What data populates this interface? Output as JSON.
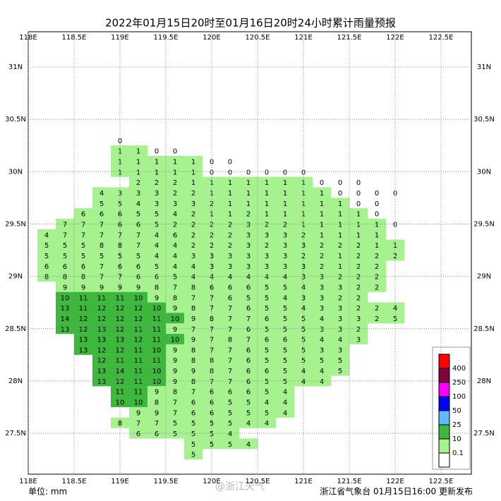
{
  "title": "2022年01月15日20时至01月16日20时24小时累计雨量预报",
  "lon_ticks": [
    {
      "value": 118,
      "label": "118E"
    },
    {
      "value": 118.5,
      "label": "118.5E"
    },
    {
      "value": 119,
      "label": "119E"
    },
    {
      "value": 119.5,
      "label": "119.5E"
    },
    {
      "value": 120,
      "label": "120E"
    },
    {
      "value": 120.5,
      "label": "120.5E"
    },
    {
      "value": 121,
      "label": "121E"
    },
    {
      "value": 121.5,
      "label": "121.5E"
    },
    {
      "value": 122,
      "label": "122E"
    },
    {
      "value": 122.5,
      "label": "122.5E"
    }
  ],
  "lat_ticks": [
    {
      "value": 31,
      "label": "31N"
    },
    {
      "value": 30.5,
      "label": "30.5N"
    },
    {
      "value": 30,
      "label": "30N"
    },
    {
      "value": 29.5,
      "label": "29.5N"
    },
    {
      "value": 29,
      "label": "29N"
    },
    {
      "value": 28.5,
      "label": "28.5N"
    },
    {
      "value": 28,
      "label": "28N"
    },
    {
      "value": 27.5,
      "label": "27.5N"
    }
  ],
  "legend": {
    "levels": [
      0.1,
      10,
      25,
      50,
      100,
      250,
      400
    ],
    "colors": [
      "#a6f28f",
      "#3db83d",
      "#61b8ff",
      "#0000fe",
      "#fa00fa",
      "#800040",
      "#ff0000"
    ]
  },
  "grid": [
    {
      "lat": 30.3,
      "lon0": 119.0,
      "values": [
        0
      ]
    },
    {
      "lat": 30.2,
      "lon0": 119.0,
      "values": [
        1,
        1,
        0,
        0
      ]
    },
    {
      "lat": 30.1,
      "lon0": 119.0,
      "values": [
        1,
        1,
        1,
        1,
        1,
        0,
        0
      ]
    },
    {
      "lat": 30.0,
      "lon0": 119.0,
      "values": [
        1,
        1,
        1,
        1,
        1,
        0,
        0,
        0,
        0,
        0,
        0
      ]
    },
    {
      "lat": 29.9,
      "lon0": 119.2,
      "values": [
        2,
        2,
        2,
        1,
        1,
        1,
        1,
        1,
        1,
        1,
        0,
        0,
        0
      ]
    },
    {
      "lat": 29.8,
      "lon0": 118.8,
      "values": [
        4,
        3,
        3,
        3,
        2,
        2,
        1,
        1,
        1,
        1,
        1,
        1,
        1,
        0,
        0,
        0,
        0
      ]
    },
    {
      "lat": 29.7,
      "lon0": 118.8,
      "values": [
        5,
        5,
        4,
        3,
        3,
        3,
        2,
        1,
        1,
        1,
        1,
        1,
        1,
        1,
        0,
        0
      ]
    },
    {
      "lat": 29.6,
      "lon0": 118.6,
      "values": [
        6,
        6,
        6,
        5,
        5,
        4,
        2,
        1,
        1,
        2,
        1,
        1,
        1,
        1,
        1,
        1,
        0
      ]
    },
    {
      "lat": 29.5,
      "lon0": 118.4,
      "values": [
        7,
        7,
        7,
        6,
        6,
        5,
        2,
        2,
        2,
        2,
        3,
        2,
        2,
        1,
        1,
        1,
        1,
        1,
        0
      ]
    },
    {
      "lat": 29.4,
      "lon0": 118.2,
      "values": [
        4,
        7,
        7,
        7,
        7,
        7,
        4,
        6,
        2,
        2,
        2,
        3,
        3,
        3,
        2,
        1,
        1,
        1,
        1
      ]
    },
    {
      "lat": 29.3,
      "lon0": 118.2,
      "values": [
        5,
        5,
        5,
        8,
        8,
        7,
        4,
        4,
        2,
        2,
        2,
        3,
        2,
        3,
        3,
        2,
        2,
        2,
        1,
        1
      ]
    },
    {
      "lat": 29.2,
      "lon0": 118.2,
      "values": [
        5,
        5,
        5,
        5,
        5,
        5,
        4,
        4,
        3,
        3,
        3,
        3,
        3,
        3,
        2,
        2,
        1,
        2,
        2,
        2
      ]
    },
    {
      "lat": 29.1,
      "lon0": 118.2,
      "values": [
        6,
        6,
        6,
        7,
        6,
        6,
        5,
        4,
        4,
        3,
        3,
        3,
        3,
        3,
        3,
        2,
        1,
        2,
        2
      ]
    },
    {
      "lat": 29.0,
      "lon0": 118.2,
      "values": [
        8,
        8,
        8,
        7,
        7,
        6,
        6,
        5,
        4,
        4,
        4,
        4,
        4,
        4,
        3,
        3,
        2,
        2,
        2
      ]
    },
    {
      "lat": 28.9,
      "lon0": 118.4,
      "values": [
        9,
        9,
        9,
        9,
        9,
        8,
        7,
        8,
        6,
        6,
        6,
        5,
        5,
        4,
        3,
        3,
        2,
        2
      ]
    },
    {
      "lat": 28.8,
      "lon0": 118.4,
      "values": [
        10,
        11,
        11,
        11,
        10,
        9,
        8,
        7,
        7,
        6,
        5,
        5,
        4,
        3,
        3,
        2,
        2
      ]
    },
    {
      "lat": 28.7,
      "lon0": 118.4,
      "values": [
        13,
        11,
        12,
        12,
        12,
        10,
        9,
        8,
        7,
        7,
        6,
        5,
        5,
        4,
        3,
        3,
        2,
        2,
        4
      ]
    },
    {
      "lat": 28.6,
      "lon0": 118.4,
      "values": [
        14,
        12,
        12,
        12,
        12,
        11,
        10,
        9,
        8,
        7,
        7,
        6,
        5,
        5,
        4,
        3,
        3,
        2,
        5
      ]
    },
    {
      "lat": 28.5,
      "lon0": 118.4,
      "values": [
        13,
        12,
        13,
        12,
        11,
        11,
        9,
        7,
        7,
        7,
        6,
        5,
        5,
        5,
        3,
        3,
        2
      ]
    },
    {
      "lat": 28.4,
      "lon0": 118.6,
      "values": [
        13,
        13,
        13,
        12,
        11,
        10,
        9,
        7,
        8,
        7,
        6,
        6,
        5,
        4,
        4,
        3
      ]
    },
    {
      "lat": 28.3,
      "lon0": 118.6,
      "values": [
        13,
        12,
        12,
        11,
        10,
        9,
        8,
        7,
        7,
        6,
        5,
        5,
        5,
        3,
        3
      ]
    },
    {
      "lat": 28.2,
      "lon0": 118.8,
      "values": [
        12,
        11,
        11,
        11,
        9,
        8,
        8,
        7,
        6,
        5,
        5,
        5,
        5,
        5
      ]
    },
    {
      "lat": 28.1,
      "lon0": 118.8,
      "values": [
        13,
        14,
        11,
        10,
        9,
        9,
        8,
        7,
        6,
        6,
        5,
        4,
        4,
        5
      ]
    },
    {
      "lat": 28.0,
      "lon0": 118.8,
      "values": [
        13,
        12,
        11,
        10,
        9,
        8,
        7,
        7,
        6,
        5,
        5,
        4,
        4
      ]
    },
    {
      "lat": 27.9,
      "lon0": 119.0,
      "values": [
        11,
        11,
        9,
        8,
        7,
        6,
        6,
        6,
        5,
        4
      ]
    },
    {
      "lat": 27.8,
      "lon0": 119.0,
      "values": [
        10,
        10,
        8,
        7,
        6,
        6,
        5,
        5,
        4,
        4
      ]
    },
    {
      "lat": 27.7,
      "lon0": 119.2,
      "values": [
        9,
        9,
        7,
        6,
        6,
        5,
        5,
        5,
        4
      ]
    },
    {
      "lat": 27.6,
      "lon0": 119.0,
      "values": [
        8,
        7,
        7,
        5,
        5,
        5,
        5,
        4,
        4
      ]
    },
    {
      "lat": 27.5,
      "lon0": 119.2,
      "values": [
        6,
        6,
        5,
        5,
        5,
        4
      ]
    },
    {
      "lat": 27.4,
      "lon0": 119.8,
      "values": [
        5,
        5,
        5,
        4
      ]
    },
    {
      "lat": 27.3,
      "lon0": 119.8,
      "values": [
        5
      ]
    }
  ],
  "unit": "单位: mm",
  "watermark": "@浙江天气",
  "footer": "浙江省气象台 01月15日16:00 更新发布"
}
